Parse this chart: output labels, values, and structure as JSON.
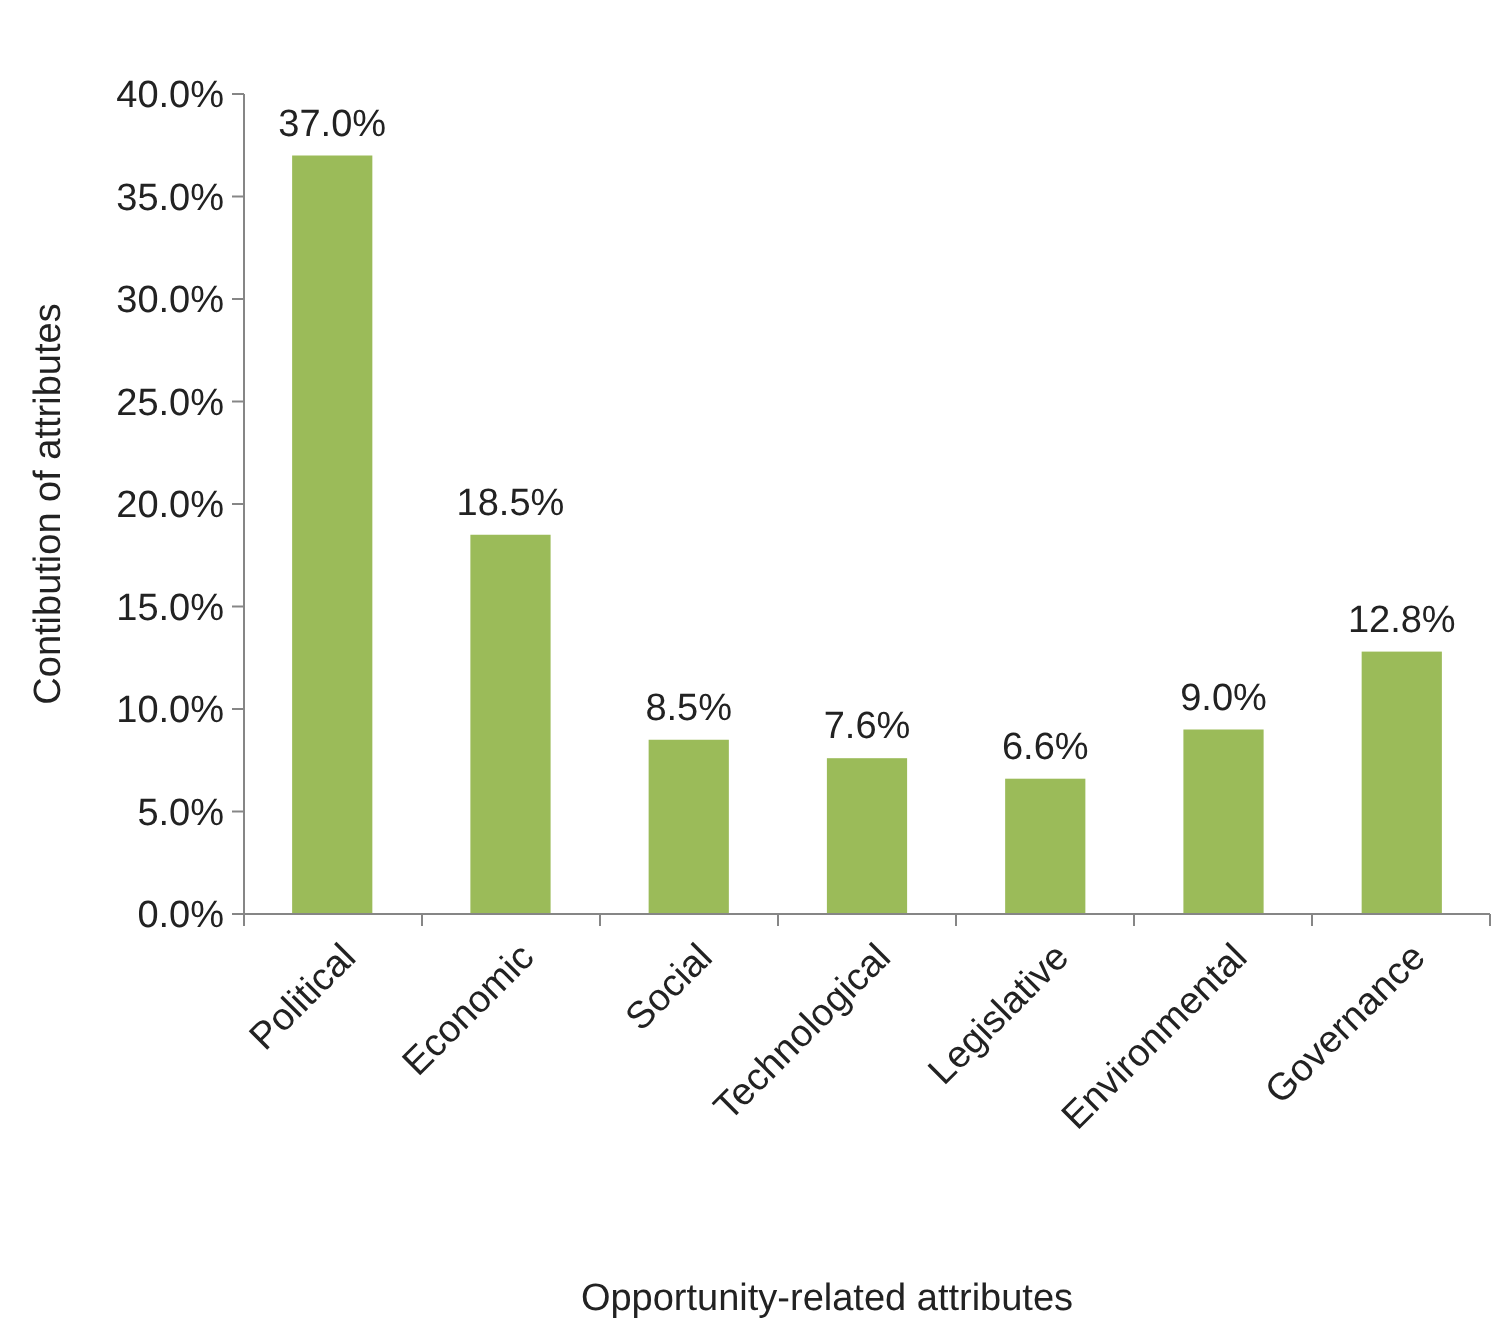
{
  "chart_data": {
    "type": "bar",
    "xlabel": "Opportunity-related attributes",
    "ylabel": "Contibution of attributes",
    "categories": [
      "Political",
      "Economic",
      "Social",
      "Technological",
      "Legislative",
      "Environmental",
      "Governance"
    ],
    "values": [
      37.0,
      18.5,
      8.5,
      7.6,
      6.6,
      9.0,
      12.8
    ],
    "value_labels": [
      "37.0%",
      "18.5%",
      "8.5%",
      "7.6%",
      "6.6%",
      "9.0%",
      "12.8%"
    ],
    "color": "#9bbb59",
    "ylim": [
      0,
      40
    ],
    "yticks": [
      {
        "value": 0,
        "label": "0.0%"
      },
      {
        "value": 5,
        "label": "5.0%"
      },
      {
        "value": 10,
        "label": "10.0%"
      },
      {
        "value": 15,
        "label": "15.0%"
      },
      {
        "value": 20,
        "label": "20.0%"
      },
      {
        "value": 25,
        "label": "25.0%"
      },
      {
        "value": 30,
        "label": "30.0%"
      },
      {
        "value": 35,
        "label": "35.0%"
      },
      {
        "value": 40,
        "label": "40.0%"
      }
    ],
    "grid": false
  }
}
